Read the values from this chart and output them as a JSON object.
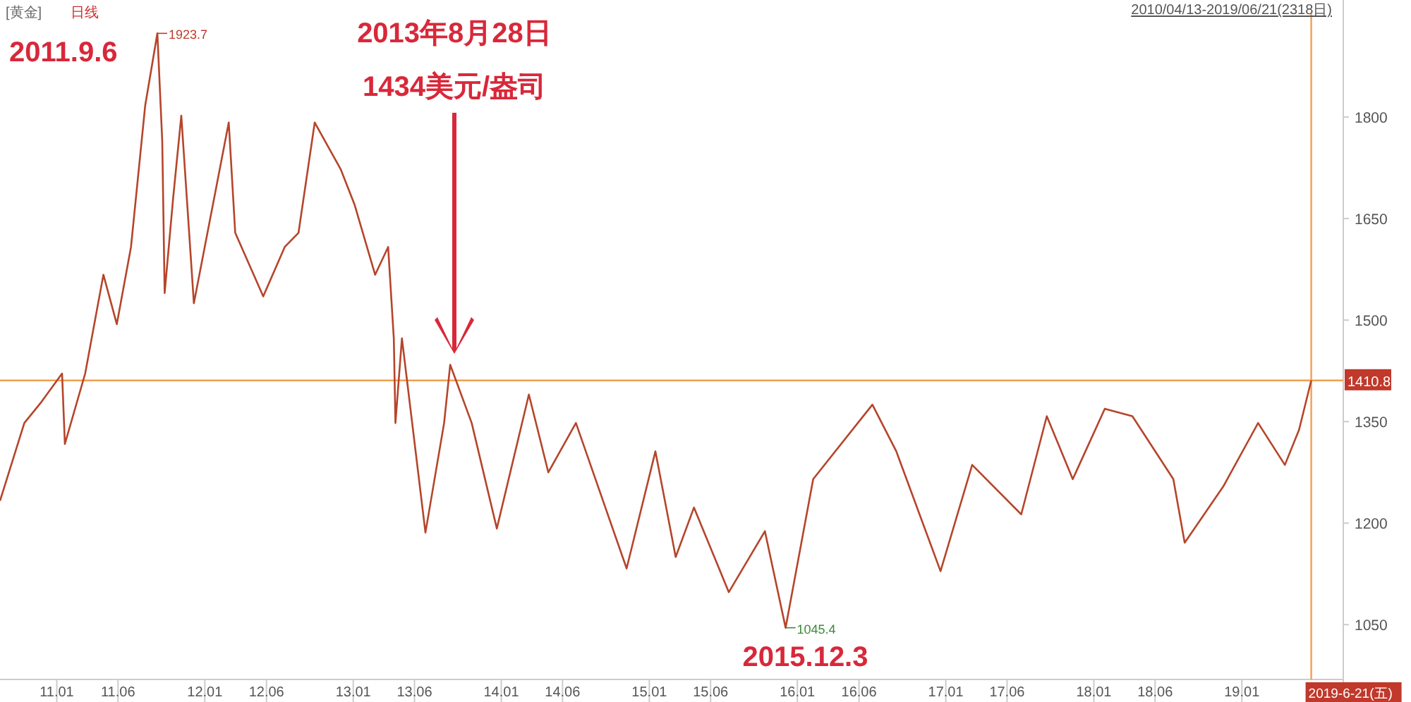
{
  "chart_data": {
    "type": "line",
    "title": "[黄金]",
    "subtitle": "日线",
    "xlim": [
      "2010-08-14",
      "2019-09-08"
    ],
    "ylim": [
      969,
      1973
    ],
    "xticks": [
      {
        "value": "2011-01-01",
        "label": "11.01"
      },
      {
        "value": "2011-06-01",
        "label": "11.06"
      },
      {
        "value": "2012-01-01",
        "label": "12.01"
      },
      {
        "value": "2012-06-01",
        "label": "12.06"
      },
      {
        "value": "2013-01-01",
        "label": "13.01"
      },
      {
        "value": "2013-06-01",
        "label": "13.06"
      },
      {
        "value": "2014-01-01",
        "label": "14.01"
      },
      {
        "value": "2014-06-01",
        "label": "14.06"
      },
      {
        "value": "2015-01-01",
        "label": "15.01"
      },
      {
        "value": "2015-06-01",
        "label": "15.06"
      },
      {
        "value": "2016-01-01",
        "label": "16.01"
      },
      {
        "value": "2016-06-01",
        "label": "16.06"
      },
      {
        "value": "2017-01-01",
        "label": "17.01"
      },
      {
        "value": "2017-06-01",
        "label": "17.06"
      },
      {
        "value": "2018-01-01",
        "label": "18.01"
      },
      {
        "value": "2018-06-01",
        "label": "18.06"
      },
      {
        "value": "2019-01-01",
        "label": "19.01"
      }
    ],
    "yticks": [
      1050,
      1200,
      1350,
      1500,
      1650,
      1800
    ],
    "series": [
      {
        "color": "#b5452b",
        "x": [
          "2010-08-14",
          "2010-10-13",
          "2010-11-24",
          "2011-01-14",
          "2011-01-21",
          "2011-03-12",
          "2011-04-26",
          "2011-05-29",
          "2011-07-03",
          "2011-08-07",
          "2011-09-06",
          "2011-09-18",
          "2011-09-24",
          "2011-10-15",
          "2011-11-04",
          "2011-12-05",
          "2012-02-29",
          "2012-03-16",
          "2012-05-24",
          "2012-07-16",
          "2012-08-19",
          "2012-09-28",
          "2012-12-01",
          "2013-01-04",
          "2013-02-24",
          "2013-03-28",
          "2013-04-11",
          "2013-04-15",
          "2013-05-01",
          "2013-06-28",
          "2013-08-13",
          "2013-08-28",
          "2013-10-20",
          "2013-12-21",
          "2014-03-10",
          "2014-04-27",
          "2014-07-04",
          "2014-11-06",
          "2015-01-16",
          "2015-03-07",
          "2015-04-21",
          "2015-07-16",
          "2015-10-13",
          "2015-12-03",
          "2016-02-09",
          "2016-07-04",
          "2016-09-01",
          "2016-12-19",
          "2017-03-07",
          "2017-07-06",
          "2017-09-07",
          "2017-11-10",
          "2018-01-28",
          "2018-04-06",
          "2018-07-16",
          "2018-08-13",
          "2018-11-16",
          "2019-02-10",
          "2019-04-17",
          "2019-05-22",
          "2019-06-21"
        ],
        "values": [
          1233,
          1348,
          1379,
          1421,
          1317,
          1421,
          1567,
          1494,
          1608,
          1817,
          1923.7,
          1765,
          1540,
          1681,
          1802,
          1525,
          1792,
          1629,
          1535,
          1608,
          1629,
          1792,
          1723,
          1671,
          1567,
          1608,
          1473,
          1348,
          1473,
          1186,
          1348,
          1434,
          1348,
          1192,
          1390,
          1275,
          1348,
          1133,
          1306,
          1150,
          1223,
          1098,
          1188,
          1045.4,
          1265,
          1375,
          1306,
          1129,
          1286,
          1213,
          1358,
          1265,
          1369,
          1358,
          1265,
          1171,
          1254,
          1348,
          1286,
          1338,
          1410.8
        ]
      }
    ],
    "ref_lines": [
      {
        "axis": "y",
        "value": 1410.8,
        "label": "1410.8",
        "color": "#f0a050"
      },
      {
        "axis": "x",
        "value": "2019-06-21",
        "label": "2019-6-21(五)",
        "color": "#f0a050"
      }
    ],
    "annotations": [
      "2010/04/13-2019/06/21(2318日)",
      {
        "text": "2011.9.6",
        "x": "2011-09-06",
        "y": 1923.7
      },
      {
        "text": "1923.7",
        "x": "2011-09-06",
        "y": 1923.7
      },
      "2013年8月28日",
      "1434美元/盎司",
      {
        "text": "2015.12.3",
        "x": "2015-12-03",
        "y": 1045.4
      },
      {
        "text": "1045.4",
        "x": "2015-12-03",
        "y": 1045.4
      }
    ]
  }
}
